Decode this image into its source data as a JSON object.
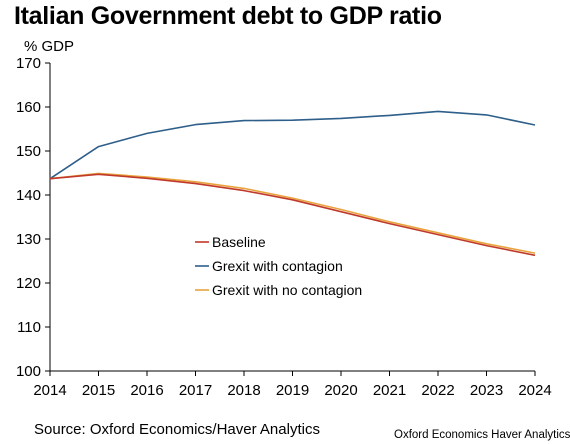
{
  "chart_data": {
    "type": "line",
    "title": "Italian Government debt to GDP ratio",
    "ylabel": "% GDP",
    "xlabel": "",
    "x": [
      2014,
      2015,
      2016,
      2017,
      2018,
      2019,
      2020,
      2021,
      2022,
      2023,
      2024
    ],
    "ylim": [
      100,
      170
    ],
    "yticks": [
      100,
      110,
      120,
      130,
      140,
      150,
      160,
      170
    ],
    "grid": false,
    "legend_position": "center-left",
    "series": [
      {
        "name": "Baseline",
        "color": "#c0392b",
        "values": [
          143.7,
          144.7,
          143.8,
          142.6,
          141.0,
          138.9,
          136.2,
          133.5,
          131.0,
          128.5,
          126.3
        ]
      },
      {
        "name": "Grexit with contagion",
        "color": "#2e5f8a",
        "values": [
          143.7,
          151.0,
          154.0,
          156.0,
          156.9,
          157.0,
          157.4,
          158.1,
          159.0,
          158.2,
          155.9
        ]
      },
      {
        "name": "Grexit with no contagion",
        "color": "#e8a33d",
        "values": [
          143.7,
          144.9,
          144.1,
          143.0,
          141.5,
          139.3,
          136.7,
          133.9,
          131.4,
          128.9,
          126.8
        ]
      }
    ]
  },
  "source": "Source: Oxford Economics/Haver Analytics",
  "credit": "Oxford Economics Haver Analytics"
}
